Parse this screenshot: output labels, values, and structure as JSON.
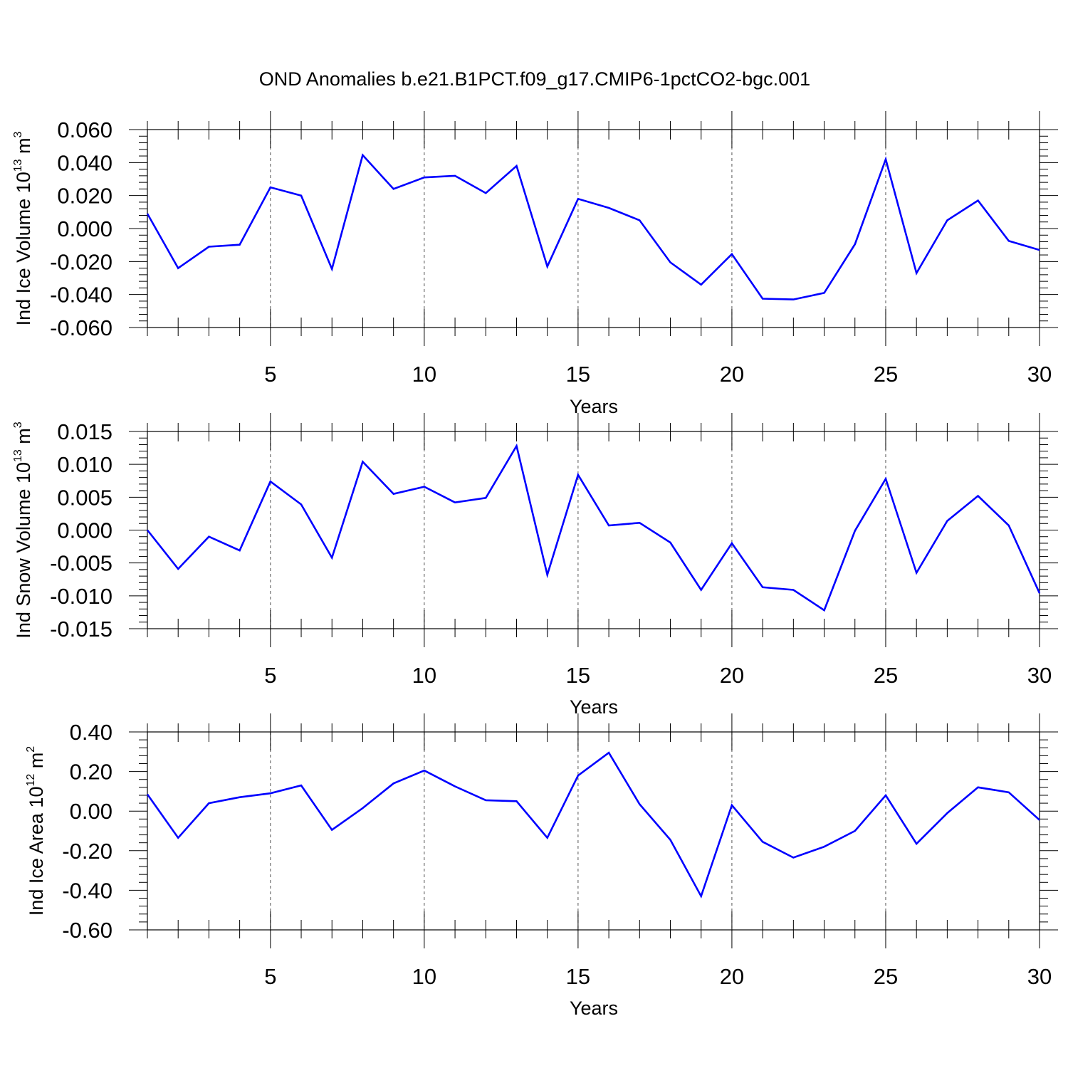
{
  "title": "OND Anomalies b.e21.B1PCT.f09_g17.CMIP6-1pctCO2-bgc.001",
  "chart_data": [
    {
      "type": "line",
      "xlabel": "Years",
      "ylabel": {
        "main": "Ind Ice Volume 10",
        "exponent": "13",
        "unit": " m",
        "unit_exponent": "3"
      },
      "xlim": [
        1,
        30
      ],
      "ylim": [
        -0.06,
        0.06
      ],
      "xticks": [
        5,
        10,
        15,
        20,
        25,
        30
      ],
      "xtick_labels": [
        "5",
        "10",
        "15",
        "20",
        "25",
        "30"
      ],
      "yticks": [
        -0.06,
        -0.04,
        -0.02,
        0.0,
        0.02,
        0.04,
        0.06
      ],
      "ytick_labels": [
        "-0.060",
        "-0.040",
        "-0.020",
        "0.000",
        "0.020",
        "0.040",
        "0.060"
      ],
      "line_color": "#0000ff",
      "grid": "vertical dashed at major x ticks",
      "x": [
        1,
        2,
        3,
        4,
        5,
        6,
        7,
        8,
        9,
        10,
        11,
        12,
        13,
        14,
        15,
        16,
        17,
        18,
        19,
        20,
        21,
        22,
        23,
        24,
        25,
        26,
        27,
        28,
        29,
        30
      ],
      "y": [
        0.009,
        -0.024,
        -0.011,
        -0.0098,
        0.025,
        0.02,
        -0.0245,
        0.0445,
        0.024,
        0.031,
        0.032,
        0.0215,
        0.038,
        -0.023,
        0.018,
        0.0125,
        0.005,
        -0.0205,
        -0.034,
        -0.0155,
        -0.0425,
        -0.043,
        -0.039,
        -0.0095,
        0.042,
        -0.027,
        0.005,
        0.017,
        -0.0075,
        -0.013
      ]
    },
    {
      "type": "line",
      "xlabel": "Years",
      "ylabel": {
        "main": "Ind Snow Volume 10",
        "exponent": "13",
        "unit": " m",
        "unit_exponent": "3"
      },
      "xlim": [
        1,
        30
      ],
      "ylim": [
        -0.015,
        0.015
      ],
      "xticks": [
        5,
        10,
        15,
        20,
        25,
        30
      ],
      "xtick_labels": [
        "5",
        "10",
        "15",
        "20",
        "25",
        "30"
      ],
      "yticks": [
        -0.015,
        -0.01,
        -0.005,
        0.0,
        0.005,
        0.01,
        0.015
      ],
      "ytick_labels": [
        "-0.015",
        "-0.010",
        "-0.005",
        "0.000",
        "0.005",
        "0.010",
        "0.015"
      ],
      "line_color": "#0000ff",
      "grid": "vertical dashed at major x ticks",
      "x": [
        1,
        2,
        3,
        4,
        5,
        6,
        7,
        8,
        9,
        10,
        11,
        12,
        13,
        14,
        15,
        16,
        17,
        18,
        19,
        20,
        21,
        22,
        23,
        24,
        25,
        26,
        27,
        28,
        29,
        30
      ],
      "y": [
        0.0,
        -0.0059,
        -0.001,
        -0.0031,
        0.0074,
        0.0039,
        -0.0042,
        0.0104,
        0.0055,
        0.0066,
        0.0042,
        0.0049,
        0.0128,
        -0.0068,
        0.0084,
        0.0007,
        0.0011,
        -0.0019,
        -0.0091,
        -0.002,
        -0.0087,
        -0.0091,
        -0.0122,
        -0.0001,
        0.0078,
        -0.0065,
        0.0014,
        0.0052,
        0.0007,
        -0.0096
      ]
    },
    {
      "type": "line",
      "xlabel": "Years",
      "ylabel": {
        "main": "Ind Ice Area 10",
        "exponent": "12",
        "unit": " m",
        "unit_exponent": "2"
      },
      "xlim": [
        1,
        30
      ],
      "ylim": [
        -0.6,
        0.4
      ],
      "xticks": [
        5,
        10,
        15,
        20,
        25,
        30
      ],
      "xtick_labels": [
        "5",
        "10",
        "15",
        "20",
        "25",
        "30"
      ],
      "yticks": [
        -0.6,
        -0.4,
        -0.2,
        0.0,
        0.2,
        0.4
      ],
      "ytick_labels": [
        "-0.60",
        "-0.40",
        "-0.20",
        "0.00",
        "0.20",
        "0.40"
      ],
      "line_color": "#0000ff",
      "grid": "vertical dashed at major x ticks",
      "x": [
        1,
        2,
        3,
        4,
        5,
        6,
        7,
        8,
        9,
        10,
        11,
        12,
        13,
        14,
        15,
        16,
        17,
        18,
        19,
        20,
        21,
        22,
        23,
        24,
        25,
        26,
        27,
        28,
        29,
        30
      ],
      "y": [
        0.085,
        -0.135,
        0.04,
        0.07,
        0.09,
        0.13,
        -0.095,
        0.015,
        0.14,
        0.205,
        0.125,
        0.055,
        0.05,
        -0.135,
        0.18,
        0.295,
        0.035,
        -0.145,
        -0.43,
        0.03,
        -0.155,
        -0.235,
        -0.18,
        -0.1,
        0.08,
        -0.165,
        -0.01,
        0.12,
        0.095,
        -0.045
      ]
    }
  ]
}
